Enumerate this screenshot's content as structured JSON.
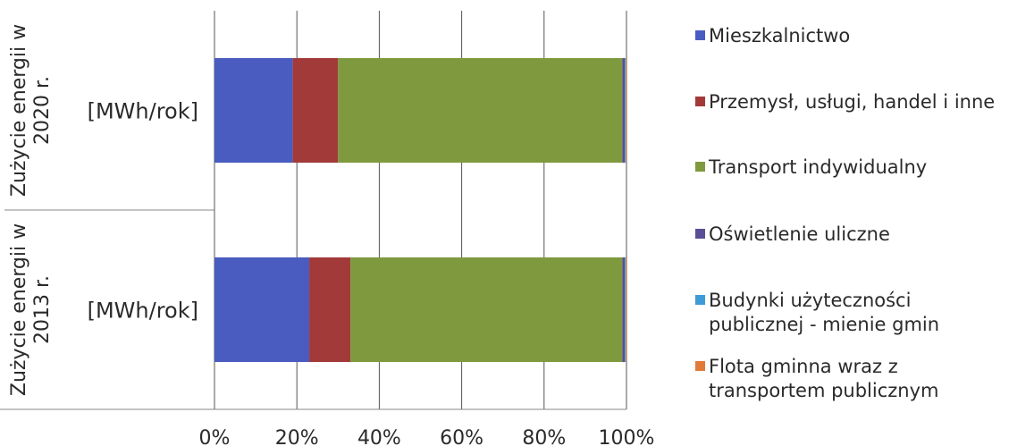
{
  "chart_data": {
    "type": "bar",
    "orientation": "horizontal",
    "stacked": "percent",
    "groups": [
      {
        "label_lines": [
          "Zużycie energii w",
          "2020 r."
        ],
        "category": "[MWh/rok]"
      },
      {
        "label_lines": [
          "Zużycie energii w",
          "2013 r."
        ],
        "category": "[MWh/rok]"
      }
    ],
    "series": [
      {
        "name": "Mieszkalnictwo",
        "color": "#4a5cc0",
        "values": [
          19,
          23
        ]
      },
      {
        "name": "Przemysł, usługi, handel i inne",
        "color": "#a33a3a",
        "values": [
          11,
          10
        ]
      },
      {
        "name": "Transport indywidualny",
        "color": "#7f9a3e",
        "values": [
          69,
          66
        ]
      },
      {
        "name": "Oświetlenie uliczne",
        "color": "#5a4f96",
        "values": [
          0.6,
          0.6
        ]
      },
      {
        "name": "Budynki użyteczności publicznej - mienie gmin",
        "label_lines": [
          "Budynki użyteczności",
          "publicznej - mienie gmin"
        ],
        "color": "#3f9ad8",
        "values": [
          0.2,
          0.2
        ]
      },
      {
        "name": "Flota gminna wraz z transportem publicznym",
        "label_lines": [
          "Flota gminna wraz z",
          "transportem publicznym"
        ],
        "color": "#e07b3a",
        "values": [
          0.2,
          0.2
        ]
      }
    ],
    "xticks": [
      "0%",
      "20%",
      "40%",
      "60%",
      "80%",
      "100%"
    ],
    "xlim": [
      0,
      100
    ],
    "grid": "vertical",
    "legend": "right"
  }
}
